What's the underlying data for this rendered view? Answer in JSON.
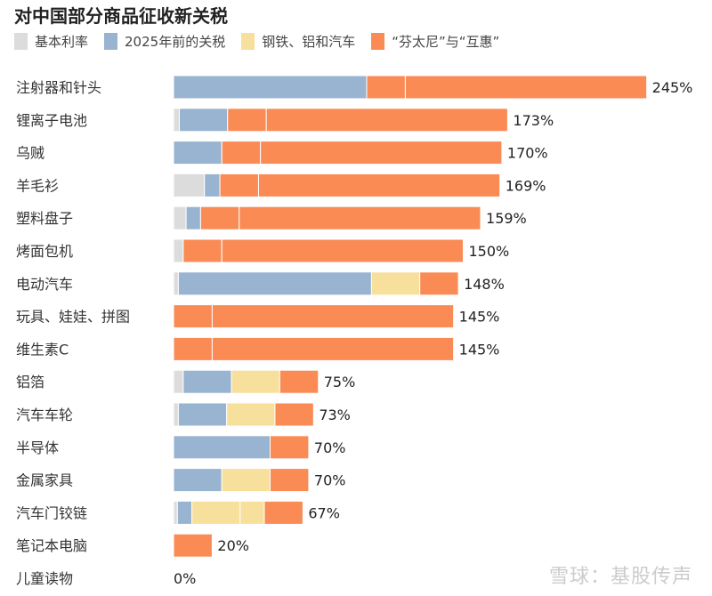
{
  "chart_data": {
    "type": "bar",
    "orientation": "horizontal",
    "stacked": true,
    "title": "对中国部分商品征收新关税",
    "legend_position": "top",
    "series": [
      {
        "name": "基本利率",
        "color": "#dcdcdc"
      },
      {
        "name": "2025年前的关税",
        "color": "#98b4d0"
      },
      {
        "name": "钢铁、铝和汽车",
        "color": "#f7df9c"
      },
      {
        "name": "“芬太尼”与“互惠”",
        "color": "#fb8b55"
      }
    ],
    "categories": [
      "注射器和针头",
      "锂离子电池",
      "乌贼",
      "羊毛衫",
      "塑料盘子",
      "烤面包机",
      "电动汽车",
      "玩具、娃娃、拼图",
      "维生素C",
      "铝箔",
      "汽车车轮",
      "半导体",
      "金属家具",
      "汽车门铰链",
      "笔记本电脑",
      "儿童读物"
    ],
    "totals_labels": [
      "245%",
      "173%",
      "170%",
      "169%",
      "159%",
      "150%",
      "148%",
      "145%",
      "145%",
      "75%",
      "73%",
      "70%",
      "70%",
      "67%",
      "20%",
      "0%"
    ],
    "segments": [
      [
        [
          1,
          100
        ],
        [
          3,
          20
        ],
        [
          3,
          125
        ]
      ],
      [
        [
          0,
          3
        ],
        [
          1,
          25
        ],
        [
          3,
          20
        ],
        [
          3,
          125
        ]
      ],
      [
        [
          1,
          25
        ],
        [
          3,
          20
        ],
        [
          3,
          125
        ]
      ],
      [
        [
          0,
          16
        ],
        [
          1,
          8
        ],
        [
          3,
          20
        ],
        [
          3,
          125
        ]
      ],
      [
        [
          0,
          6.5
        ],
        [
          1,
          7.5
        ],
        [
          3,
          20
        ],
        [
          3,
          125
        ]
      ],
      [
        [
          0,
          5
        ],
        [
          3,
          20
        ],
        [
          3,
          125
        ]
      ],
      [
        [
          0,
          2.5
        ],
        [
          1,
          100
        ],
        [
          2,
          25
        ],
        [
          3,
          20
        ]
      ],
      [
        [
          3,
          20
        ],
        [
          3,
          125
        ]
      ],
      [
        [
          3,
          20
        ],
        [
          3,
          125
        ]
      ],
      [
        [
          0,
          5
        ],
        [
          1,
          25
        ],
        [
          2,
          25
        ],
        [
          3,
          20
        ]
      ],
      [
        [
          0,
          2.5
        ],
        [
          1,
          25
        ],
        [
          2,
          25
        ],
        [
          3,
          20
        ]
      ],
      [
        [
          1,
          50
        ],
        [
          3,
          20
        ]
      ],
      [
        [
          1,
          25
        ],
        [
          2,
          25
        ],
        [
          3,
          20
        ]
      ],
      [
        [
          0,
          2
        ],
        [
          1,
          7.5
        ],
        [
          2,
          25
        ],
        [
          2,
          12.5
        ],
        [
          3,
          20
        ]
      ],
      [
        [
          3,
          20
        ]
      ],
      []
    ],
    "grid": false
  },
  "watermark": "雪球：基股传声"
}
